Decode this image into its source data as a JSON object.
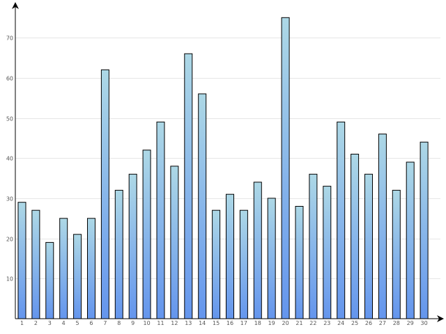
{
  "chart_data": {
    "type": "bar",
    "title": "",
    "xlabel": "",
    "ylabel": "",
    "categories": [
      "1",
      "2",
      "3",
      "4",
      "5",
      "6",
      "7",
      "8",
      "9",
      "10",
      "11",
      "12",
      "13",
      "14",
      "15",
      "16",
      "17",
      "18",
      "19",
      "20",
      "21",
      "22",
      "23",
      "24",
      "25",
      "26",
      "27",
      "28",
      "29",
      "30"
    ],
    "values": [
      29,
      27,
      19,
      25,
      21,
      25,
      62,
      32,
      36,
      42,
      49,
      38,
      66,
      56,
      27,
      31,
      27,
      34,
      30,
      75,
      28,
      36,
      33,
      49,
      41,
      36,
      46,
      32,
      39,
      44
    ],
    "ylim": [
      0,
      78
    ],
    "yticks": [
      10,
      20,
      30,
      40,
      50,
      60,
      70
    ],
    "grid": true,
    "legend": "none",
    "colors": {
      "bar_top": "#add8e6",
      "bar_bottom": "#6495ed",
      "bar_stroke": "#000000",
      "grid": "#e6e6e6",
      "axis": "#000000",
      "tick_text": "#555555"
    }
  }
}
